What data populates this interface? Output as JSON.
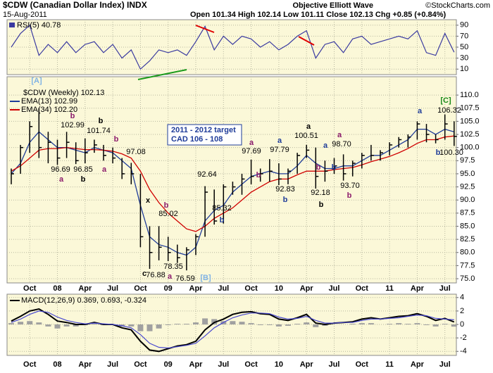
{
  "header": {
    "symbol": "$CDW (Canadian Dollar Index) INDX",
    "date": "15-Aug-2011",
    "quote": "Open 101.34 High 102.14 Low 101.11 Close 102.13 Chg +0.85 (+0.84%)",
    "brand": "Objective Elliott Wave",
    "source": "©StockCharts.com"
  },
  "chart_data": [
    {
      "type": "line",
      "title": "RSI(5) 40.78",
      "color": "#3a3aa0",
      "values": [
        50,
        75,
        90,
        35,
        55,
        40,
        60,
        40,
        55,
        60,
        40,
        55,
        30,
        45,
        10,
        25,
        45,
        40,
        45,
        35,
        60,
        88,
        45,
        70,
        55,
        70,
        65,
        50,
        60,
        45,
        55,
        70,
        80,
        30,
        55,
        60,
        40,
        65,
        70,
        55,
        60,
        65,
        70,
        65,
        80,
        40,
        35,
        75,
        40.78
      ],
      "ylim": [
        0,
        100
      ],
      "yticks": [
        10,
        30,
        50,
        70,
        90
      ],
      "grid": true
    },
    {
      "type": "ohlc",
      "title": "$CDW (Weekly) 102.13",
      "color": "#000000",
      "categories": [
        null,
        null,
        "Oct",
        null,
        null,
        "08",
        null,
        null,
        "Apr",
        null,
        null,
        "Jul",
        null,
        null,
        "Oct",
        null,
        null,
        "09",
        null,
        null,
        "Apr",
        null,
        null,
        "Jul",
        null,
        null,
        "Oct",
        null,
        null,
        "10",
        null,
        null,
        "Apr",
        null,
        null,
        "Jul",
        null,
        null,
        "Oct",
        null,
        null,
        "11",
        null,
        null,
        "Apr",
        null,
        null,
        "Jul",
        null
      ],
      "high": [
        96,
        100.5,
        105,
        107.5,
        103,
        101.5,
        102.99,
        101,
        101.74,
        101.5,
        100.5,
        100,
        98,
        97.08,
        95,
        85,
        85.02,
        83,
        81.5,
        81,
        83.5,
        92.64,
        92,
        93,
        93.5,
        95,
        97.69,
        96,
        97.79,
        97,
        96,
        99,
        100.51,
        100,
        97.5,
        98,
        98.7,
        97.5,
        99,
        100.5,
        99.5,
        101,
        102,
        102.5,
        105,
        104.5,
        102.5,
        106.32,
        105
      ],
      "low": [
        93,
        95,
        99,
        98,
        97,
        96.69,
        98,
        96.85,
        97,
        99,
        97.5,
        97,
        94,
        93,
        81,
        76.88,
        78.5,
        78.35,
        78,
        76.59,
        79.5,
        83,
        85.32,
        85.5,
        91,
        91,
        93,
        93.5,
        93.5,
        92.83,
        93,
        95,
        98,
        92.18,
        93.5,
        95,
        93.7,
        94.5,
        96,
        97.5,
        97.5,
        98.5,
        100,
        100,
        101.5,
        101,
        100.8,
        101.5,
        100.3
      ],
      "close": [
        95,
        100,
        104,
        100,
        101,
        98,
        101,
        97.5,
        99,
        100.5,
        98.5,
        98,
        95,
        95,
        83,
        80,
        81,
        80,
        79,
        80.5,
        83,
        91.5,
        86,
        92.5,
        92.5,
        94,
        94.5,
        95,
        95.5,
        94,
        95.5,
        98.5,
        99.5,
        94.5,
        95.5,
        96.5,
        95,
        97,
        98.5,
        98.5,
        99,
        100.5,
        101.5,
        102,
        104.5,
        102.5,
        101.5,
        104.5,
        102.13
      ],
      "series": [
        {
          "name": "EMA(13) 102.99",
          "color": "#1f3c99",
          "values": [
            95,
            97,
            101,
            103,
            101.5,
            100,
            100,
            99.5,
            99,
            100,
            99.5,
            99,
            97.5,
            96,
            89,
            83,
            81.5,
            81,
            80,
            79.5,
            81,
            86,
            88,
            89,
            91.5,
            93,
            94.5,
            95,
            95.5,
            95,
            95,
            96.5,
            98.5,
            97,
            96,
            96,
            96.5,
            96.5,
            97.5,
            98.5,
            98.5,
            99.5,
            100.5,
            101.5,
            103.5,
            103.5,
            102.5,
            103.5,
            102.99
          ]
        },
        {
          "name": "EMA(34) 102.20",
          "color": "#d00000",
          "values": [
            95.5,
            96.5,
            98,
            99.5,
            99.8,
            99.8,
            100,
            99.8,
            99.6,
            99.6,
            99.5,
            99.3,
            98.8,
            98,
            95.5,
            92,
            89.5,
            87.5,
            86,
            84.5,
            84,
            85,
            86.5,
            87.5,
            88.5,
            90,
            91.5,
            92.5,
            93.5,
            94,
            94,
            94.8,
            95.5,
            95.5,
            95.5,
            95.8,
            96,
            96.2,
            96.7,
            97.3,
            97.8,
            98.3,
            99,
            99.8,
            100.8,
            101.5,
            101.5,
            102,
            102.2
          ]
        }
      ],
      "ylim": [
        74.2,
        113.5
      ],
      "yticks": [
        {
          "value": 75,
          "label": "75.0"
        },
        {
          "value": 77.5,
          "label": "77.5"
        },
        {
          "value": 80,
          "label": "80.0"
        },
        {
          "value": 82.5,
          "label": "82.5"
        },
        {
          "value": 85,
          "label": "85.0"
        },
        {
          "value": 87.5,
          "label": "87.5"
        },
        {
          "value": 90,
          "label": "90.0"
        },
        {
          "value": 92.5,
          "label": "92.5"
        },
        {
          "value": 95,
          "label": "95.0"
        },
        {
          "value": 97.5,
          "label": "97.5"
        },
        {
          "value": 100,
          "label": "100.0"
        },
        {
          "value": 102.5,
          "label": "102.5"
        },
        {
          "value": 105,
          "label": "105.0"
        },
        {
          "value": 107.5,
          "label": "107.5"
        },
        {
          "value": 110,
          "label": "110.0"
        }
      ],
      "grid": true,
      "target_box": [
        "2011 - 2012 target",
        "CAD 106 - 108"
      ],
      "annotations": [
        {
          "text": "[A]",
          "color": "#7fb2e5"
        },
        {
          "text": "b",
          "color": "#8b1a6b"
        },
        {
          "text": "102.99",
          "color": "#000000"
        },
        {
          "text": "b",
          "color": "#000000"
        },
        {
          "text": "101.74",
          "color": "#000000"
        },
        {
          "text": "b",
          "color": "#8b1a6b"
        },
        {
          "text": "97.08",
          "color": "#000000"
        },
        {
          "text": "96.69",
          "color": "#000000"
        },
        {
          "text": "96.85",
          "color": "#000000"
        },
        {
          "text": "a",
          "color": "#8b1a6b"
        },
        {
          "text": "b",
          "color": "#000000"
        },
        {
          "text": "a",
          "color": "#8b1a6b"
        },
        {
          "text": "x",
          "color": "#000000"
        },
        {
          "text": "b",
          "color": "#8b1a6b"
        },
        {
          "text": "85.02",
          "color": "#000000"
        },
        {
          "text": "c",
          "color": "#000000"
        },
        {
          "text": "76.88",
          "color": "#000000"
        },
        {
          "text": "78.35",
          "color": "#000000"
        },
        {
          "text": "76.59",
          "color": "#000000"
        },
        {
          "text": "a",
          "color": "#8b1a6b"
        },
        {
          "text": "[B]",
          "color": "#7fb2e5"
        },
        {
          "text": "92.64",
          "color": "#000000"
        },
        {
          "text": "85.32",
          "color": "#000000"
        },
        {
          "text": "b",
          "color": "#1f3c99"
        },
        {
          "text": "a",
          "color": "#8b1a6b"
        },
        {
          "text": "97.69",
          "color": "#000000"
        },
        {
          "text": "b",
          "color": "#8b1a6b"
        },
        {
          "text": "a",
          "color": "#1f3c99"
        },
        {
          "text": "97.79",
          "color": "#000000"
        },
        {
          "text": "92.83",
          "color": "#000000"
        },
        {
          "text": "b",
          "color": "#1f3c99"
        },
        {
          "text": "a",
          "color": "#000000"
        },
        {
          "text": "100.51",
          "color": "#000000"
        },
        {
          "text": "a",
          "color": "#1f3c99"
        },
        {
          "text": "a",
          "color": "#8b1a6b"
        },
        {
          "text": "98.70",
          "color": "#000000"
        },
        {
          "text": "b",
          "color": "#8b1a6b"
        },
        {
          "text": "b",
          "color": "#1f3c99"
        },
        {
          "text": "92.18",
          "color": "#000000"
        },
        {
          "text": "b",
          "color": "#000000"
        },
        {
          "text": "93.70",
          "color": "#000000"
        },
        {
          "text": "b",
          "color": "#8b1a6b"
        },
        {
          "text": "a",
          "color": "#1f3c99"
        },
        {
          "text": "[C]",
          "color": "#1a8a1a"
        },
        {
          "text": "106.32",
          "color": "#000000"
        },
        {
          "text": "100.30",
          "color": "#000000"
        },
        {
          "text": "b",
          "color": "#1f3c99"
        }
      ]
    },
    {
      "type": "macd",
      "title": "MACD(12,26,9) 0.369, 0.693, -0.324",
      "series": [
        {
          "color": "#000000",
          "values": [
            0.5,
            1.2,
            2.0,
            2.3,
            1.5,
            0.5,
            0.3,
            0,
            0,
            0.3,
            0,
            0,
            -0.5,
            -0.8,
            -2.5,
            -3.8,
            -4.0,
            -3.6,
            -3.2,
            -3.0,
            -2.5,
            -0.8,
            0.3,
            0.8,
            1.5,
            1.8,
            1.9,
            1.6,
            1.5,
            0.8,
            0.6,
            1.0,
            1.5,
            0.2,
            0,
            0.2,
            0.3,
            0.4,
            0.8,
            1.0,
            0.8,
            1.0,
            1.2,
            1.3,
            1.6,
            1.2,
            0.6,
            0.9,
            0.369
          ]
        },
        {
          "color": "#4a4ad0",
          "values": [
            0.3,
            0.8,
            1.5,
            2.0,
            1.8,
            1.1,
            0.6,
            0.3,
            0.1,
            0.2,
            0.1,
            0,
            -0.2,
            -0.5,
            -1.5,
            -2.8,
            -3.4,
            -3.5,
            -3.3,
            -3.1,
            -2.8,
            -1.7,
            -0.5,
            0.3,
            1.0,
            1.4,
            1.7,
            1.7,
            1.6,
            1.1,
            0.8,
            0.9,
            1.2,
            0.6,
            0.2,
            0.2,
            0.3,
            0.3,
            0.6,
            0.8,
            0.8,
            0.9,
            1.0,
            1.2,
            1.4,
            1.3,
            0.9,
            0.8,
            0.693
          ]
        }
      ],
      "histogram": {
        "color": "#a0a0a0",
        "values": [
          0.2,
          0.4,
          0.5,
          0.3,
          -0.3,
          -0.6,
          -0.3,
          -0.3,
          -0.1,
          0.1,
          -0.1,
          0,
          -0.3,
          -0.3,
          -1.0,
          -1.0,
          -0.6,
          -0.1,
          0.1,
          0.1,
          0.3,
          0.9,
          0.8,
          0.5,
          0.5,
          0.4,
          0.2,
          -0.1,
          -0.1,
          -0.3,
          -0.2,
          0.1,
          0.3,
          -0.4,
          -0.2,
          0,
          0,
          0.1,
          0.2,
          0.2,
          0,
          0.1,
          0.2,
          0.1,
          0.2,
          -0.1,
          -0.3,
          0.1,
          -0.324
        ]
      },
      "ylim": [
        -4.6,
        4.5
      ],
      "yticks": [
        -4,
        -2,
        0,
        2,
        4
      ],
      "grid": true
    }
  ]
}
